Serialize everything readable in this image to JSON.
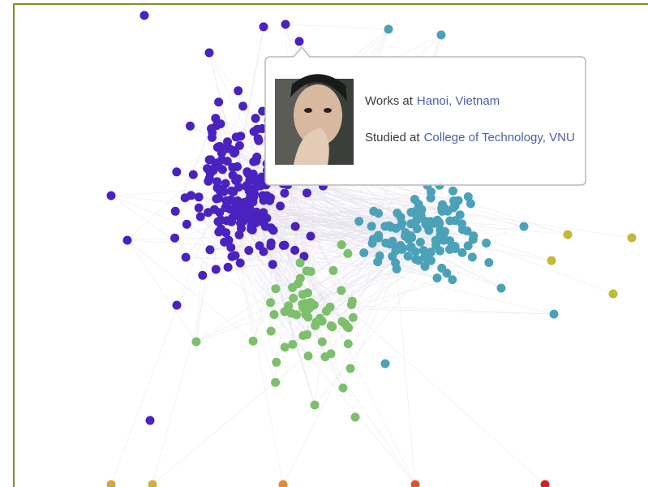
{
  "tooltip": {
    "works_label": "Works at",
    "works_place": "Hanoi, Vietnam",
    "studied_label": "Studied at",
    "studied_place": "College of Technology, VNU"
  }
}
